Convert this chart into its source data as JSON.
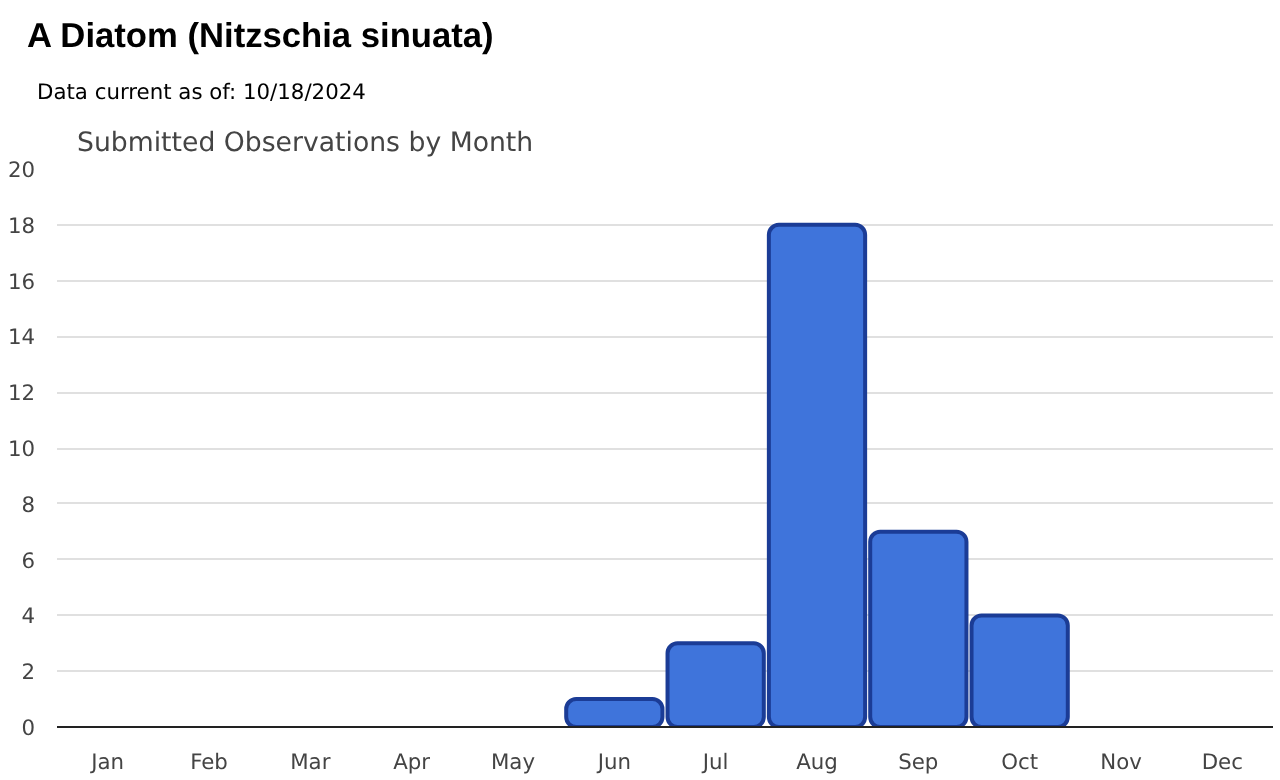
{
  "chart_data": {
    "type": "bar",
    "title": "A Diatom   (Nitzschia sinuata)",
    "subtitle": "Data current as of: 10/18/2024",
    "annotations": [
      "Submitted Observations by Month"
    ],
    "categories": [
      "Jan",
      "Feb",
      "Mar",
      "Apr",
      "May",
      "Jun",
      "Jul",
      "Aug",
      "Sep",
      "Oct",
      "Nov",
      "Dec"
    ],
    "values": [
      0,
      0,
      0,
      0,
      0,
      1,
      3,
      18,
      7,
      4,
      0,
      0
    ],
    "color": "#3f74db",
    "ylim": [
      0,
      20
    ],
    "yticks": [
      0,
      2,
      4,
      6,
      8,
      10,
      12,
      14,
      16,
      18,
      20
    ],
    "grid": "y"
  }
}
